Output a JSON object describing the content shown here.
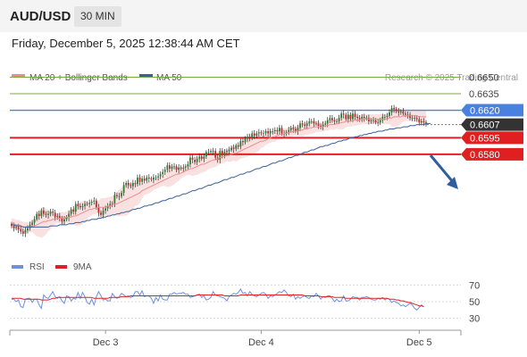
{
  "header": {
    "symbol": "AUD/USD",
    "timeframe": "30 MIN"
  },
  "datetime": "Friday, December 5, 2025 12:38:44 AM CET",
  "legend": {
    "ma20": "MA 20 + Bollinger Bands",
    "ma50": "MA 50",
    "research": "Research © 2025 Trading Central"
  },
  "colors": {
    "ma20": "#f08a8a",
    "ma50": "#3a5f9a",
    "resistance": "#e02020",
    "pivot": "#4a80e0",
    "target": "#7aaa40",
    "current": "#333333",
    "rsi": "#6f8fdf",
    "rsi_ma": "#e02020",
    "bullish": "#2e7d32",
    "bearish": "#c62828"
  },
  "levels": [
    {
      "value": 0.665,
      "label": "0.6650",
      "kind": "target"
    },
    {
      "value": 0.6635,
      "label": "0.6635",
      "kind": "target"
    },
    {
      "value": 0.662,
      "label": "0.6620",
      "kind": "pivot"
    },
    {
      "value": 0.6607,
      "label": "0.6607",
      "kind": "current"
    },
    {
      "value": 0.6595,
      "label": "0.6595",
      "kind": "support"
    },
    {
      "value": 0.658,
      "label": "0.6580",
      "kind": "support"
    }
  ],
  "rsi_panel": {
    "legend_rsi": "RSI",
    "legend_ma": "9MA",
    "ticks": [
      {
        "value": 70,
        "label": "70"
      },
      {
        "value": 50,
        "label": "50"
      },
      {
        "value": 30,
        "label": "30"
      }
    ]
  },
  "chart_data": {
    "type": "line",
    "price_range": [
      0.649,
      0.6665
    ],
    "rsi_range": [
      20,
      80
    ],
    "x_ticks": [
      {
        "index": 41,
        "label": "Dec 3"
      },
      {
        "index": 109,
        "label": "Dec 4"
      },
      {
        "index": 178,
        "label": "Dec 5"
      }
    ],
    "series": [
      {
        "name": "Price",
        "values": [
          0.6515,
          0.6513,
          0.6514,
          0.6512,
          0.651,
          0.6508,
          0.6511,
          0.6513,
          0.6516,
          0.6518,
          0.6521,
          0.6526,
          0.6524,
          0.6529,
          0.6526,
          0.6525,
          0.6526,
          0.6528,
          0.6527,
          0.6523,
          0.6524,
          0.6522,
          0.6519,
          0.6521,
          0.6523,
          0.6526,
          0.653,
          0.6528,
          0.6535,
          0.6533,
          0.6532,
          0.6533,
          0.6535,
          0.6535,
          0.6536,
          0.6537,
          0.6538,
          0.6532,
          0.6527,
          0.6525,
          0.6529,
          0.6531,
          0.6533,
          0.6535,
          0.6535,
          0.6543,
          0.6542,
          0.6542,
          0.6545,
          0.6552,
          0.6554,
          0.6552,
          0.6551,
          0.6554,
          0.6553,
          0.6559,
          0.6555,
          0.6558,
          0.6556,
          0.6559,
          0.6558,
          0.6557,
          0.6559,
          0.6559,
          0.656,
          0.6562,
          0.6564,
          0.6566,
          0.657,
          0.6567,
          0.6569,
          0.6569,
          0.6566,
          0.6568,
          0.6567,
          0.6568,
          0.6569,
          0.6571,
          0.6577,
          0.6575,
          0.6573,
          0.6576,
          0.6578,
          0.6576,
          0.6578,
          0.6582,
          0.6582,
          0.6583,
          0.6583,
          0.6577,
          0.6575,
          0.6583,
          0.6579,
          0.6582,
          0.6583,
          0.6584,
          0.6586,
          0.6585,
          0.6588,
          0.6587,
          0.6592,
          0.6591,
          0.6594,
          0.6596,
          0.6595,
          0.6599,
          0.6597,
          0.6599,
          0.66,
          0.6599,
          0.6599,
          0.6601,
          0.6599,
          0.6601,
          0.6601,
          0.6602,
          0.6601,
          0.6604,
          0.6599,
          0.6599,
          0.66,
          0.6602,
          0.6604,
          0.6603,
          0.6601,
          0.6604,
          0.6608,
          0.6607,
          0.6606,
          0.6608,
          0.661,
          0.661,
          0.6608,
          0.6608,
          0.6606,
          0.6605,
          0.6607,
          0.6608,
          0.6611,
          0.6613,
          0.6611,
          0.661,
          0.661,
          0.6613,
          0.6617,
          0.6616,
          0.6612,
          0.6616,
          0.6612,
          0.6617,
          0.6614,
          0.6613,
          0.6612,
          0.6614,
          0.6613,
          0.6613,
          0.661,
          0.6611,
          0.6611,
          0.6609,
          0.6609,
          0.6611,
          0.6614,
          0.6614,
          0.6615,
          0.6618,
          0.6622,
          0.6621,
          0.6619,
          0.6618,
          0.6619,
          0.6617,
          0.6616,
          0.6616,
          0.6613,
          0.6613,
          0.6613,
          0.6612,
          0.6609,
          0.661,
          0.6609,
          0.6607
        ]
      },
      {
        "name": "MA 20",
        "values": [
          0.6518,
          0.6517,
          0.6516,
          0.6516,
          0.6515,
          0.6514,
          0.6514,
          0.6514,
          0.6514,
          0.6515,
          0.6515,
          0.6516,
          0.6517,
          0.6518,
          0.6519,
          0.6519,
          0.652,
          0.652,
          0.6521,
          0.6521,
          0.6522,
          0.6522,
          0.6522,
          0.6522,
          0.6523,
          0.6523,
          0.6523,
          0.6524,
          0.6524,
          0.6525,
          0.6526,
          0.6527,
          0.6528,
          0.6529,
          0.653,
          0.653,
          0.6531,
          0.6531,
          0.6532,
          0.6532,
          0.6532,
          0.6532,
          0.6533,
          0.6533,
          0.6534,
          0.6535,
          0.6535,
          0.6536,
          0.6537,
          0.6538,
          0.6539,
          0.654,
          0.6541,
          0.6542,
          0.6543,
          0.6544,
          0.6545,
          0.6547,
          0.6548,
          0.6549,
          0.655,
          0.6551,
          0.6552,
          0.6553,
          0.6554,
          0.6555,
          0.6556,
          0.6557,
          0.6558,
          0.6559,
          0.656,
          0.6561,
          0.6562,
          0.6562,
          0.6563,
          0.6564,
          0.6565,
          0.6566,
          0.6567,
          0.6567,
          0.6568,
          0.6569,
          0.657,
          0.6571,
          0.6571,
          0.6572,
          0.6573,
          0.6574,
          0.6575,
          0.6575,
          0.6576,
          0.6577,
          0.6578,
          0.6578,
          0.6579,
          0.6579,
          0.658,
          0.6581,
          0.6581,
          0.6582,
          0.6583,
          0.6584,
          0.6585,
          0.6586,
          0.6587,
          0.6588,
          0.6589,
          0.659,
          0.6591,
          0.6592,
          0.6592,
          0.6593,
          0.6594,
          0.6595,
          0.6596,
          0.6596,
          0.6597,
          0.6598,
          0.6598,
          0.6599,
          0.6599,
          0.66,
          0.66,
          0.6601,
          0.6601,
          0.6601,
          0.6602,
          0.6602,
          0.6603,
          0.6603,
          0.6604,
          0.6604,
          0.6605,
          0.6605,
          0.6605,
          0.6605,
          0.6605,
          0.6606,
          0.6606,
          0.6607,
          0.6607,
          0.6607,
          0.6608,
          0.6608,
          0.6609,
          0.6609,
          0.661,
          0.661,
          0.661,
          0.6611,
          0.6611,
          0.6611,
          0.6611,
          0.6612,
          0.6612,
          0.6612,
          0.6612,
          0.6612,
          0.6612,
          0.6612,
          0.6612,
          0.6612,
          0.6612,
          0.6612,
          0.6612,
          0.6613,
          0.6613,
          0.6614,
          0.6614,
          0.6614,
          0.6614,
          0.6615,
          0.6615,
          0.6615,
          0.6615,
          0.6615,
          0.6615,
          0.6615,
          0.6614,
          0.6614,
          0.6614,
          0.6614
        ]
      },
      {
        "name": "MA 50",
        "values": [
          0.6516,
          0.6516,
          0.6515,
          0.6515,
          0.6515,
          0.6514,
          0.6514,
          0.6514,
          0.6514,
          0.6514,
          0.6514,
          0.6514,
          0.6514,
          0.6514,
          0.6514,
          0.6514,
          0.6514,
          0.6515,
          0.6515,
          0.6515,
          0.6515,
          0.6516,
          0.6516,
          0.6516,
          0.6516,
          0.6517,
          0.6517,
          0.6517,
          0.6518,
          0.6518,
          0.6518,
          0.6519,
          0.6519,
          0.652,
          0.652,
          0.6521,
          0.6521,
          0.6521,
          0.6522,
          0.6522,
          0.6523,
          0.6523,
          0.6524,
          0.6524,
          0.6525,
          0.6525,
          0.6526,
          0.6526,
          0.6527,
          0.6527,
          0.6528,
          0.6528,
          0.6529,
          0.653,
          0.653,
          0.6531,
          0.6531,
          0.6532,
          0.6533,
          0.6533,
          0.6534,
          0.6534,
          0.6535,
          0.6536,
          0.6536,
          0.6537,
          0.6538,
          0.6538,
          0.6539,
          0.654,
          0.654,
          0.6541,
          0.6542,
          0.6542,
          0.6543,
          0.6544,
          0.6544,
          0.6545,
          0.6546,
          0.6547,
          0.6547,
          0.6548,
          0.6549,
          0.6549,
          0.655,
          0.6551,
          0.6552,
          0.6552,
          0.6553,
          0.6554,
          0.6554,
          0.6555,
          0.6556,
          0.6557,
          0.6557,
          0.6558,
          0.6559,
          0.6559,
          0.656,
          0.6561,
          0.6562,
          0.6562,
          0.6563,
          0.6564,
          0.6564,
          0.6565,
          0.6566,
          0.6567,
          0.6567,
          0.6568,
          0.6569,
          0.6569,
          0.657,
          0.6571,
          0.6572,
          0.6572,
          0.6573,
          0.6574,
          0.6574,
          0.6575,
          0.6576,
          0.6577,
          0.6577,
          0.6578,
          0.6579,
          0.6579,
          0.658,
          0.6581,
          0.6582,
          0.6582,
          0.6583,
          0.6584,
          0.6584,
          0.6585,
          0.6586,
          0.6587,
          0.6587,
          0.6588,
          0.6588,
          0.6589,
          0.659,
          0.659,
          0.6591,
          0.6592,
          0.6592,
          0.6593,
          0.6593,
          0.6594,
          0.6595,
          0.6595,
          0.6596,
          0.6596,
          0.6597,
          0.6597,
          0.6598,
          0.6598,
          0.6599,
          0.6599,
          0.66,
          0.66,
          0.6601,
          0.6601,
          0.6601,
          0.6602,
          0.6602,
          0.6603,
          0.6603,
          0.6603,
          0.6604,
          0.6604,
          0.6604,
          0.6605,
          0.6605,
          0.6605,
          0.6606,
          0.6606,
          0.6606,
          0.6607,
          0.6607,
          0.6607,
          0.6607,
          0.6608,
          0.6608,
          0.6608
        ]
      },
      {
        "name": "RSI",
        "values": [
          53,
          53,
          50,
          52,
          44,
          43,
          53,
          54,
          54,
          49,
          53,
          53,
          46,
          42,
          58,
          55,
          54,
          58,
          62,
          56,
          54,
          56,
          51,
          48,
          57,
          56,
          51,
          54,
          53,
          61,
          54,
          61,
          56,
          49,
          47,
          53,
          46,
          56,
          62,
          57,
          52,
          53,
          51,
          51,
          60,
          56,
          54,
          56,
          60,
          58,
          56,
          57,
          55,
          56,
          62,
          62,
          58,
          63,
          56,
          57,
          57,
          54,
          48,
          55,
          51,
          58,
          53,
          52,
          52,
          59,
          59,
          61,
          59,
          60,
          60,
          61,
          59,
          59,
          55,
          56,
          57,
          58,
          59,
          55,
          57,
          52,
          53,
          55,
          62,
          58,
          57,
          56,
          55,
          54,
          51,
          56,
          58,
          60,
          59,
          61,
          65,
          60,
          61,
          57,
          62,
          59,
          57,
          56,
          58,
          60,
          61,
          59,
          54,
          57,
          56,
          58,
          60,
          62,
          61,
          64,
          61,
          57,
          56,
          59,
          53,
          56,
          54,
          56,
          57,
          55,
          54,
          57,
          56,
          60,
          57,
          53,
          56,
          55,
          57,
          57,
          54,
          50,
          53,
          50,
          51,
          57,
          51,
          51,
          53,
          56,
          55,
          55,
          52,
          55,
          55,
          56,
          55,
          53,
          52,
          52,
          54,
          53,
          55,
          52,
          54,
          53,
          49,
          51,
          49,
          48,
          45,
          46,
          44,
          46,
          48,
          46,
          42,
          40,
          43,
          46,
          44
        ]
      },
      {
        "name": "9MA",
        "values": [
          54,
          54,
          54,
          54,
          54,
          53,
          53,
          53,
          53,
          53,
          53,
          53,
          53,
          52,
          52,
          52,
          52,
          53,
          54,
          54,
          55,
          55,
          55,
          55,
          55,
          55,
          55,
          55,
          55,
          55,
          55,
          55,
          55,
          55,
          55,
          55,
          54,
          54,
          54,
          54,
          54,
          54,
          54,
          55,
          55,
          55,
          55,
          55,
          56,
          56,
          56,
          56,
          57,
          57,
          57,
          57,
          57,
          57,
          57,
          57,
          57,
          57,
          57,
          57,
          57,
          57,
          57,
          57,
          57,
          57,
          57,
          57,
          57,
          57,
          57,
          57,
          57,
          57,
          57,
          57,
          57,
          58,
          58,
          58,
          58,
          58,
          58,
          58,
          58,
          58,
          58,
          58,
          58,
          57,
          57,
          57,
          57,
          57,
          57,
          57,
          58,
          58,
          58,
          58,
          58,
          58,
          58,
          58,
          58,
          58,
          58,
          58,
          58,
          58,
          58,
          58,
          58,
          58,
          58,
          58,
          58,
          58,
          58,
          58,
          58,
          58,
          58,
          58,
          57,
          57,
          57,
          57,
          57,
          57,
          57,
          56,
          56,
          56,
          56,
          56,
          56,
          55,
          55,
          55,
          55,
          55,
          54,
          54,
          54,
          54,
          54,
          54,
          54,
          54,
          54,
          54,
          54,
          54,
          54,
          54,
          54,
          54,
          54,
          54,
          54,
          53,
          53,
          53,
          52,
          52,
          51,
          51,
          50,
          49,
          49,
          48,
          47,
          46,
          45,
          45,
          44
        ]
      }
    ]
  }
}
